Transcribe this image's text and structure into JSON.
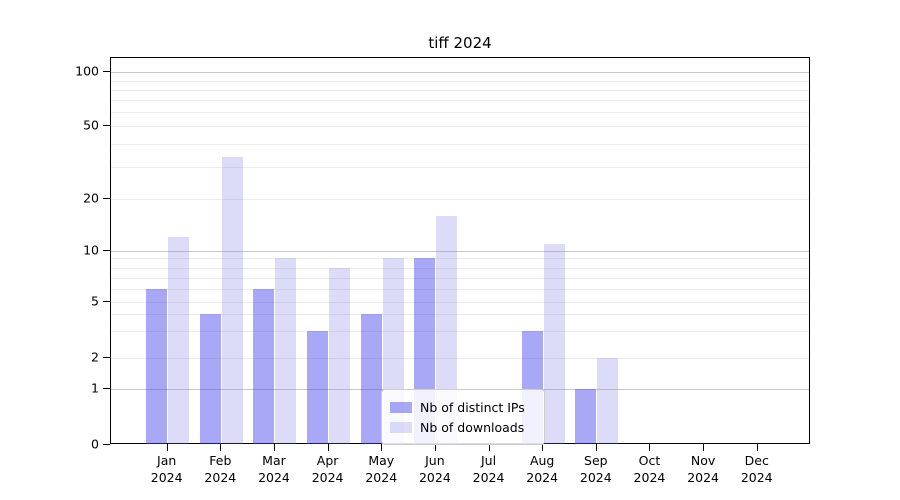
{
  "chart_data": {
    "type": "bar",
    "title": "tiff 2024",
    "categories": [
      "Jan",
      "Feb",
      "Mar",
      "Apr",
      "May",
      "Jun",
      "Jul",
      "Aug",
      "Sep",
      "Oct",
      "Nov",
      "Dec"
    ],
    "category_year": "2024",
    "series": [
      {
        "name": "Nb of distinct IPs",
        "color_on_white": "#a8a8f7",
        "color_rgba": "rgba(62,62,237,0.45)",
        "values": [
          6,
          4,
          6,
          3,
          4,
          9,
          0,
          3,
          1,
          0,
          0,
          0
        ]
      },
      {
        "name": "Nb of downloads",
        "color_on_white": "#dcdbf8",
        "color_rgba": "rgba(115,115,227,0.25)",
        "values": [
          12,
          34,
          9,
          8,
          9,
          16,
          0,
          11,
          2,
          0,
          0,
          0
        ]
      }
    ],
    "y_axis": {
      "labeled_ticks": [
        0,
        1,
        2,
        5,
        10,
        20,
        50,
        100
      ],
      "minor_gridline_values": [
        3,
        4,
        6,
        7,
        8,
        9,
        30,
        40,
        60,
        70,
        80,
        90
      ],
      "emphasized_gridline_values": [
        1,
        10,
        100
      ],
      "scale": "log-like above 1, linear segment 0-1",
      "range": [
        0,
        100
      ],
      "grid": "on"
    },
    "x_axis": {
      "tick_label_format": "month newline year"
    },
    "legend": {
      "position": "lower center inside plot"
    },
    "colors": {
      "minor_gridline": "#ebebeb",
      "emphasized_gridline": "#c8c8c8",
      "axis_spine": "#000000",
      "background": "#ffffff"
    }
  }
}
